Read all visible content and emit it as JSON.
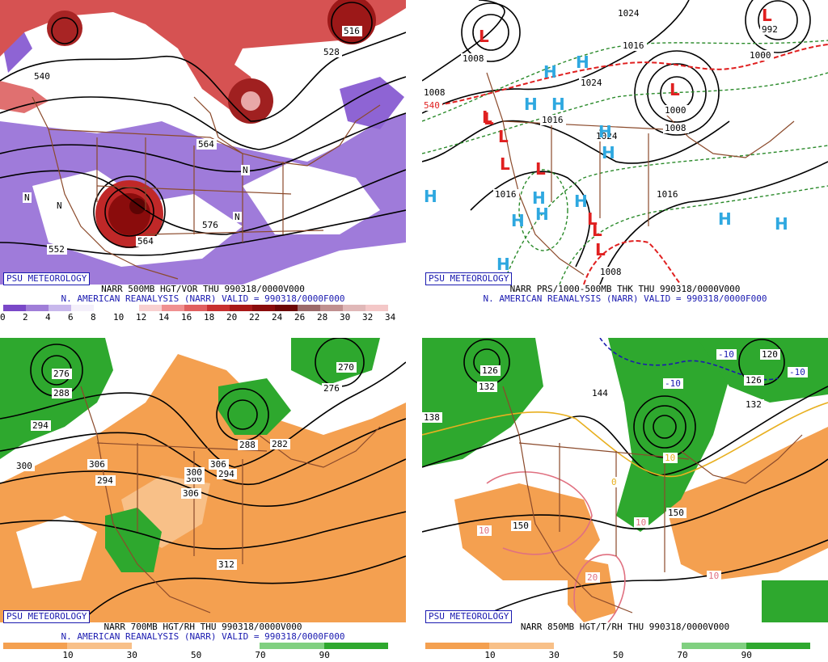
{
  "panels": [
    {
      "id": "p500",
      "logo": "PSU METEOROLOGY",
      "title": "NARR 500MB HGT/VOR THU 990318/0000V000",
      "subtitle": "N. AMERICAN REANALYSIS (NARR) VALID = 990318/0000F000",
      "colorbar": {
        "colors": [
          "#7a48c8",
          "#a07ed8",
          "#c8b8ec",
          "#f4f0fa",
          "#ffffff",
          "#ffffff",
          "#f8d0d0",
          "#f09090",
          "#e06060",
          "#c83030",
          "#a81818",
          "#8a0c0c",
          "#6c0606",
          "#9c6a6a",
          "#c09090",
          "#e0b8b8",
          "#f4c8c8"
        ],
        "labels": [
          "0",
          "2",
          "4",
          "6",
          "8",
          "10",
          "12",
          "14",
          "16",
          "18",
          "20",
          "22",
          "24",
          "26",
          "28",
          "30",
          "32",
          "34"
        ]
      },
      "contour_labels": [
        "540",
        "516",
        "528",
        "564",
        "576",
        "564",
        "552",
        "N",
        "N",
        "N",
        "N"
      ]
    },
    {
      "id": "pthk",
      "logo": "PSU METEOROLOGY",
      "title": "NARR PRS/1000-500MB THK THU 990318/0000V000",
      "subtitle": "N. AMERICAN REANALYSIS (NARR) VALID = 990318/0000F000",
      "contour_labels": [
        "1008",
        "1008",
        "1016",
        "1024",
        "1016",
        "1024",
        "1016",
        "1016",
        "1008",
        "1000",
        "1008",
        "992",
        "1000",
        "1024",
        "540"
      ],
      "high_label": "H",
      "low_label": "L"
    },
    {
      "id": "p700",
      "logo": "PSU METEOROLOGY",
      "title": "NARR 700MB HGT/RH THU 990318/0000V000",
      "subtitle": "N. AMERICAN REANALYSIS (NARR) VALID = 990318/0000F000",
      "colorbar": {
        "colors": [
          "#f4a050",
          "#f8c088",
          "#ffffff",
          "#ffffff",
          "#80d080",
          "#2ea82e"
        ],
        "labels": [
          "10",
          "30",
          "50",
          "70",
          "90"
        ]
      },
      "contour_labels": [
        "276",
        "288",
        "294",
        "300",
        "306",
        "300",
        "294",
        "288",
        "282",
        "276",
        "270",
        "312",
        "306",
        "300",
        "306",
        "294"
      ]
    },
    {
      "id": "p850",
      "logo": "PSU METEOROLOGY",
      "title": "NARR 850MB HGT/T/RH THU 990318/0000V000",
      "subtitle": "",
      "colorbar": {
        "colors": [
          "#f4a050",
          "#f8c088",
          "#ffffff",
          "#ffffff",
          "#80d080",
          "#2ea82e"
        ],
        "labels": [
          "10",
          "30",
          "50",
          "70",
          "90"
        ]
      },
      "contour_labels": [
        "138",
        "132",
        "126",
        "144",
        "150",
        "150",
        "120",
        "126",
        "132",
        "-10",
        "-10",
        "-10",
        "0",
        "10",
        "10",
        "20",
        "10",
        "10"
      ]
    }
  ]
}
